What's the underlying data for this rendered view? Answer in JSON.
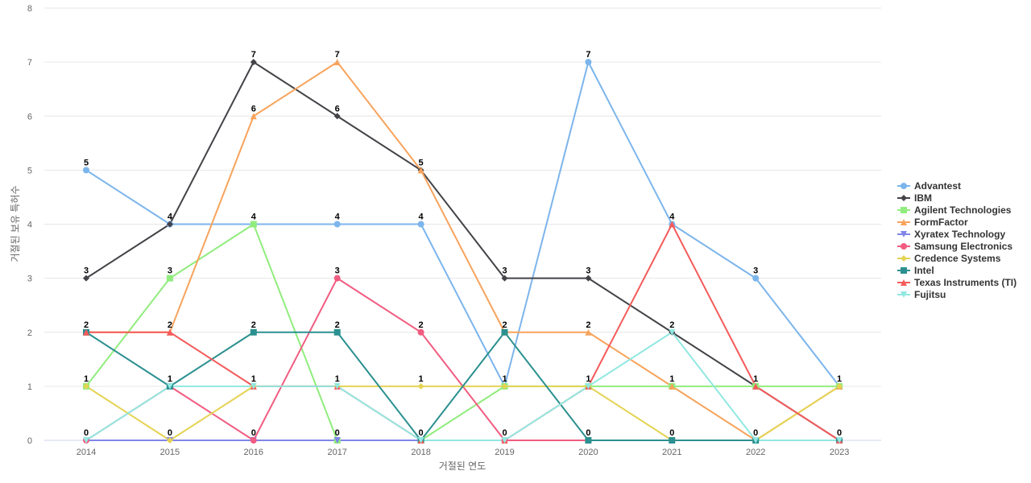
{
  "chart_data": {
    "type": "line",
    "title": "",
    "xlabel": "거절된 연도",
    "ylabel": "거절된 보유 특허수",
    "x": [
      "2014",
      "2015",
      "2016",
      "2017",
      "2018",
      "2019",
      "2020",
      "2021",
      "2022",
      "2023"
    ],
    "ylim": [
      0,
      8
    ],
    "yticks": [
      0,
      1,
      2,
      3,
      4,
      5,
      6,
      7,
      8
    ],
    "grid": true,
    "legend_position": "right",
    "series": [
      {
        "name": "Advantest",
        "color": "#7cb5ec",
        "marker": "circle",
        "values": [
          5,
          4,
          4,
          4,
          4,
          1,
          7,
          4,
          3,
          1
        ]
      },
      {
        "name": "IBM",
        "color": "#434348",
        "marker": "diamond",
        "values": [
          3,
          4,
          7,
          6,
          5,
          3,
          3,
          2,
          1,
          0
        ]
      },
      {
        "name": "Agilent Technologies",
        "color": "#90ed7d",
        "marker": "square",
        "values": [
          1,
          3,
          4,
          0,
          0,
          1,
          1,
          1,
          1,
          1
        ]
      },
      {
        "name": "FormFactor",
        "color": "#f7a35c",
        "marker": "triangle",
        "values": [
          2,
          2,
          6,
          7,
          5,
          2,
          2,
          1,
          0,
          1
        ]
      },
      {
        "name": "Xyratex Technology",
        "color": "#8085e9",
        "marker": "triangle-down",
        "values": [
          0,
          0,
          0,
          0,
          0,
          0,
          0,
          0,
          0,
          0
        ]
      },
      {
        "name": "Samsung Electronics",
        "color": "#f15c80",
        "marker": "circle",
        "values": [
          0,
          1,
          0,
          3,
          2,
          0,
          0,
          0,
          0,
          0
        ]
      },
      {
        "name": "Credence Systems",
        "color": "#e4d354",
        "marker": "diamond",
        "values": [
          1,
          0,
          1,
          1,
          1,
          1,
          1,
          0,
          0,
          1
        ]
      },
      {
        "name": "Intel",
        "color": "#2b908f",
        "marker": "square",
        "values": [
          2,
          1,
          2,
          2,
          0,
          2,
          0,
          0,
          0,
          0
        ]
      },
      {
        "name": "Texas Instruments (TI)",
        "color": "#f45b5b",
        "marker": "triangle",
        "values": [
          2,
          2,
          1,
          1,
          0,
          0,
          1,
          4,
          1,
          0
        ]
      },
      {
        "name": "Fujitsu",
        "color": "#91e8e1",
        "marker": "triangle-down",
        "values": [
          0,
          1,
          1,
          1,
          0,
          0,
          1,
          2,
          0,
          0
        ]
      }
    ],
    "data_labels": [
      {
        "x": "2014",
        "values": [
          5,
          3,
          2,
          1,
          0
        ]
      },
      {
        "x": "2015",
        "values": [
          4,
          3,
          2,
          1,
          0
        ]
      },
      {
        "x": "2016",
        "values": [
          7,
          6,
          4,
          2,
          1,
          0
        ]
      },
      {
        "x": "2017",
        "values": [
          7,
          6,
          4,
          3,
          2,
          1,
          0
        ]
      },
      {
        "x": "2018",
        "values": [
          5,
          4,
          2,
          1,
          0
        ]
      },
      {
        "x": "2019",
        "values": [
          3,
          2,
          1,
          0
        ]
      },
      {
        "x": "2020",
        "values": [
          7,
          3,
          2,
          1,
          0
        ]
      },
      {
        "x": "2021",
        "values": [
          4,
          2,
          1,
          0
        ]
      },
      {
        "x": "2022",
        "values": [
          3,
          1,
          0
        ]
      },
      {
        "x": "2023",
        "values": [
          1,
          0
        ]
      }
    ]
  }
}
